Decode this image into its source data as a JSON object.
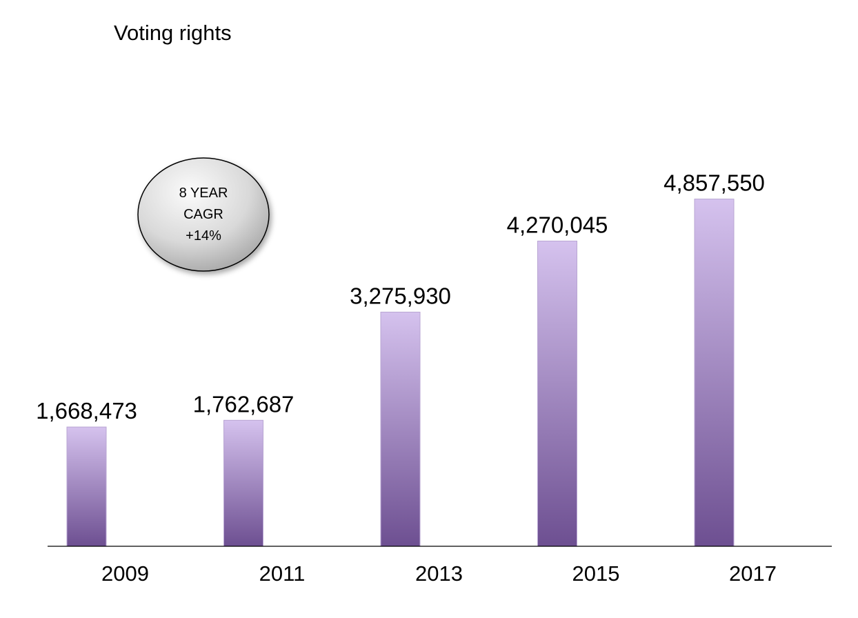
{
  "chart_data": {
    "type": "bar",
    "title": "Voting rights",
    "categories": [
      "2009",
      "2011",
      "2013",
      "2015",
      "2017"
    ],
    "values": [
      1668473,
      1762687,
      3275930,
      4270045,
      4857550
    ],
    "value_labels": [
      "1,668,473",
      "1,762,687",
      "3,275,930",
      "4,270,045",
      "4,857,550"
    ],
    "ylim": [
      0,
      5500000
    ],
    "grid": false,
    "legend": "none",
    "bar_color_top": "#d5c2ee",
    "bar_color_bottom": "#6d4f91",
    "bar_border_color": "#b9a6d3",
    "annotation": {
      "lines": [
        "8 YEAR",
        "CAGR",
        "+14%"
      ]
    }
  }
}
